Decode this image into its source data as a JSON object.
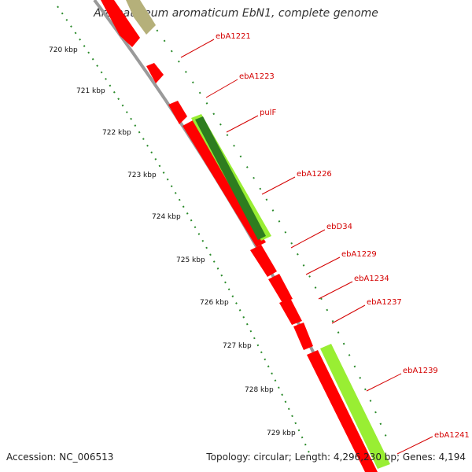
{
  "title": "Aromatoleum aromaticum EbN1, complete genome",
  "accession": "Accession: NC_006513",
  "summary": "Topology: circular; Length: 4,296,230 bp; Genes: 4,194",
  "kbp_labels": [
    "720 kbp",
    "721 kbp",
    "722 kbp",
    "723 kbp",
    "724 kbp",
    "725 kbp",
    "726 kbp",
    "727 kbp",
    "728 kbp",
    "729 kbp"
  ],
  "gene_labels": [
    "ebA1221",
    "ebA1223",
    "pulF",
    "ebA1226",
    "ebD34",
    "ebA1229",
    "ebA1234",
    "ebA1237",
    "ebA1239",
    "ebA1241"
  ],
  "colors": {
    "cds": "#ff0000",
    "other_gene": "#b5b07a",
    "feature_green": "#99ee33",
    "feature_dark_green": "#2e7d1f",
    "backbone": "#999999",
    "ticks": "#2a8a2a",
    "label": "#d40000"
  }
}
